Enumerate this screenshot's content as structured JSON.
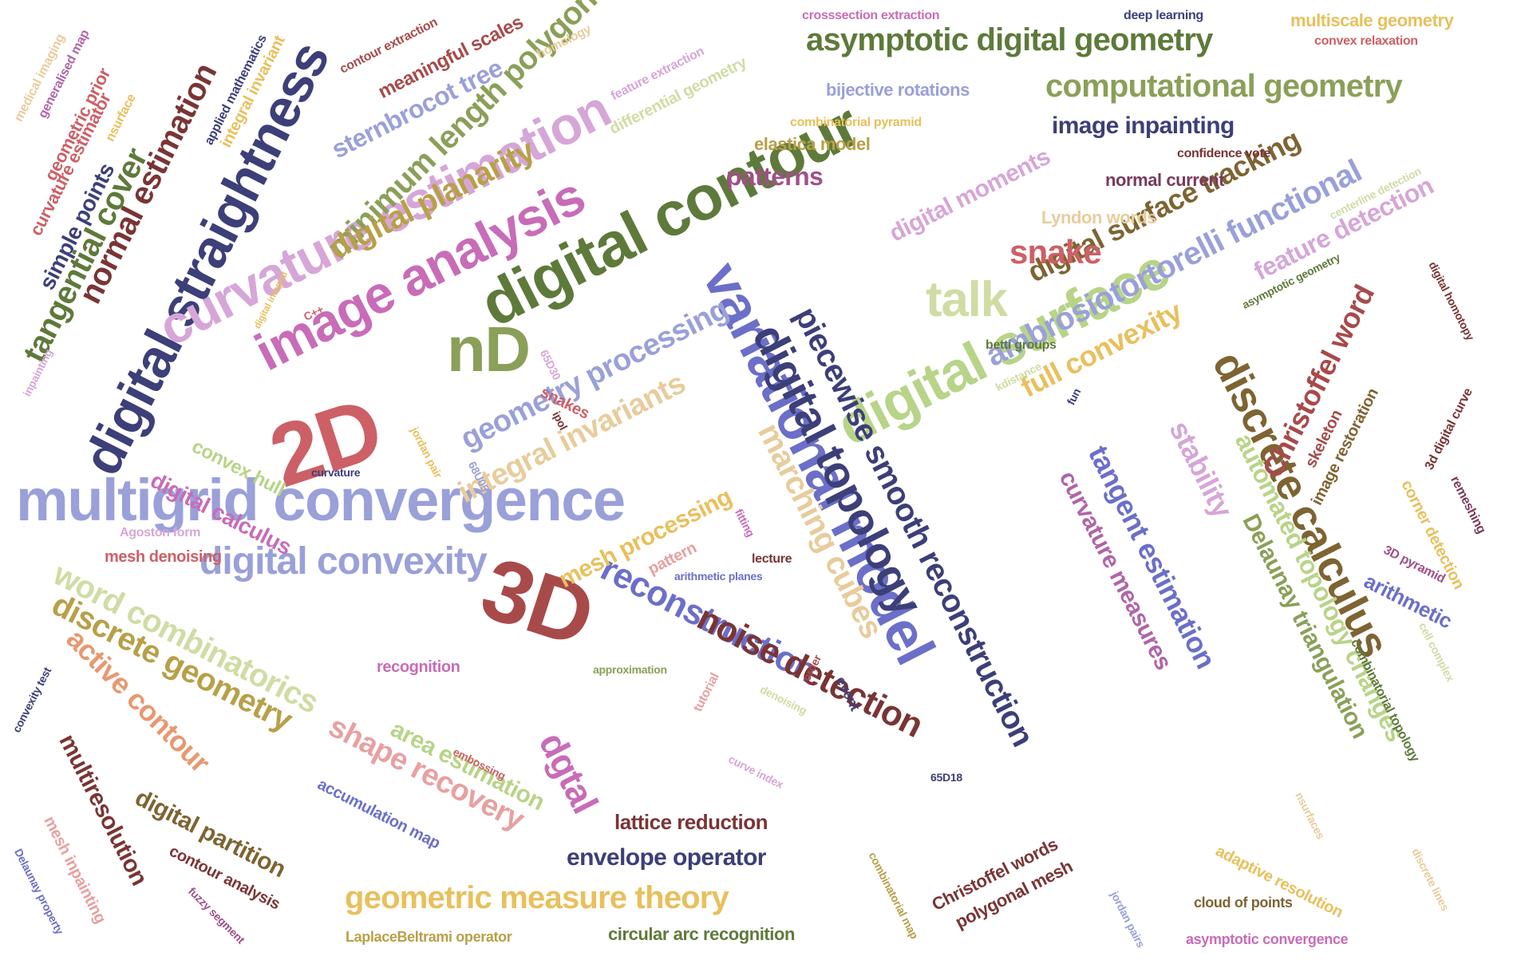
{
  "cloud": {
    "words": [
      {
        "text": "multigrid convergence",
        "color": "#9aa0d8"
      },
      {
        "text": "digital contour",
        "color": "#5e7a3a"
      },
      {
        "text": "variational model",
        "color": "#6b6fc8"
      },
      {
        "text": "digital straightness",
        "color": "#3c3f78"
      },
      {
        "text": "curvature estimation",
        "color": "#d6a6d8"
      },
      {
        "text": "image analysis",
        "color": "#c86cb8"
      },
      {
        "text": "digital surface",
        "color": "#b8d488"
      },
      {
        "text": "2D",
        "color": "#cc6066"
      },
      {
        "text": "3D",
        "color": "#a84a4a"
      },
      {
        "text": "nD",
        "color": "#8aa058"
      },
      {
        "text": "digital topology",
        "color": "#3c3f78"
      },
      {
        "text": "discrete calculus",
        "color": "#7e6432"
      },
      {
        "text": "piecewise smooth reconstruction",
        "color": "#3c3f78"
      },
      {
        "text": "asymptotic digital geometry",
        "color": "#5e7a3a"
      },
      {
        "text": "computational geometry",
        "color": "#8aa058"
      },
      {
        "text": "digital convexity",
        "color": "#9aa0d8"
      },
      {
        "text": "ambrosiotortorelli functional",
        "color": "#9aa0d8"
      },
      {
        "text": "digital surface tracking",
        "color": "#7e6432"
      },
      {
        "text": "talk",
        "color": "#d0dca4"
      },
      {
        "text": "marching cubes",
        "color": "#e8cc9c"
      },
      {
        "text": "tangential cover",
        "color": "#5e7a3a"
      },
      {
        "text": "normal estimation",
        "color": "#7a3434"
      },
      {
        "text": "minimum length polygon",
        "color": "#8aa058"
      },
      {
        "text": "sternbrocot tree",
        "color": "#9aa0d8"
      },
      {
        "text": "digital planarity",
        "color": "#b8a048"
      },
      {
        "text": "integral invariants",
        "color": "#e8cc9c"
      },
      {
        "text": "geometry processing",
        "color": "#9aa0d8"
      },
      {
        "text": "word combinatorics",
        "color": "#d0dca4"
      },
      {
        "text": "discrete geometry",
        "color": "#b8a048"
      },
      {
        "text": "active contour",
        "color": "#e89870"
      },
      {
        "text": "reconstruction",
        "color": "#6b6fc8"
      },
      {
        "text": "noise detection",
        "color": "#7a3434"
      },
      {
        "text": "tangent estimation",
        "color": "#6b6fc8"
      },
      {
        "text": "curvature measures",
        "color": "#b064a8"
      },
      {
        "text": "Christoffel word",
        "color": "#a84a4a"
      },
      {
        "text": "full convexity",
        "color": "#e8c05c"
      },
      {
        "text": "stability",
        "color": "#d6a6d8"
      },
      {
        "text": "automated topology changes",
        "color": "#b8d488"
      },
      {
        "text": "Delaunay triangulation",
        "color": "#8aa058"
      },
      {
        "text": "feature detection",
        "color": "#d6a6d8"
      },
      {
        "text": "image inpainting",
        "color": "#3c3f78"
      },
      {
        "text": "geometric measure theory",
        "color": "#e8c05c"
      },
      {
        "text": "shape recovery",
        "color": "#e8a0a0"
      },
      {
        "text": "digital partition",
        "color": "#7e6432"
      },
      {
        "text": "multiresolution",
        "color": "#7a3434"
      },
      {
        "text": "mesh processing",
        "color": "#e8c05c"
      },
      {
        "text": "dgtal",
        "color": "#c86cb8"
      },
      {
        "text": "area estimation",
        "color": "#b8d488"
      },
      {
        "text": "envelope operator",
        "color": "#3c3f78"
      },
      {
        "text": "lattice reduction",
        "color": "#7a3434"
      },
      {
        "text": "snake",
        "color": "#cc6066"
      },
      {
        "text": "patterns",
        "color": "#a05088"
      },
      {
        "text": "digital moments",
        "color": "#d6a6d8"
      },
      {
        "text": "digital calculus",
        "color": "#c86cb8"
      },
      {
        "text": "convex hull",
        "color": "#b8d488"
      },
      {
        "text": "simple points",
        "color": "#3c3f78"
      },
      {
        "text": "curvature estimator",
        "color": "#cc6066"
      },
      {
        "text": "geometric prior",
        "color": "#cc6066"
      },
      {
        "text": "generalised map",
        "color": "#b064a8"
      },
      {
        "text": "medical imaging",
        "color": "#e8cc9c"
      },
      {
        "text": "nsurface",
        "color": "#e8c05c"
      },
      {
        "text": "applied mathematics",
        "color": "#3c3f78"
      },
      {
        "text": "integral invariant",
        "color": "#e8c05c"
      },
      {
        "text": "contour extraction",
        "color": "#a84a4a"
      },
      {
        "text": "meaningful scales",
        "color": "#a84a4a"
      },
      {
        "text": "homology",
        "color": "#e8cc9c"
      },
      {
        "text": "feature extraction",
        "color": "#d6a6d8"
      },
      {
        "text": "differential geometry",
        "color": "#d0dca4"
      },
      {
        "text": "crosssection extraction",
        "color": "#c86cb8"
      },
      {
        "text": "deep learning",
        "color": "#3c3f78"
      },
      {
        "text": "multiscale geometry",
        "color": "#e8c05c"
      },
      {
        "text": "convex relaxation",
        "color": "#cc6066"
      },
      {
        "text": "bijective rotations",
        "color": "#9aa0d8"
      },
      {
        "text": "combinatorial pyramid",
        "color": "#e8c05c"
      },
      {
        "text": "elastica model",
        "color": "#b8a048"
      },
      {
        "text": "normal current",
        "color": "#7a3a5a"
      },
      {
        "text": "confidence vote",
        "color": "#7a3434"
      },
      {
        "text": "Lyndon words",
        "color": "#e8cc9c"
      },
      {
        "text": "centerline detection",
        "color": "#d0dca4"
      },
      {
        "text": "asymptotic geometry",
        "color": "#5e7a3a"
      },
      {
        "text": "digital homotopy",
        "color": "#7a3434"
      },
      {
        "text": "betti groups",
        "color": "#5e7a3a"
      },
      {
        "text": "kdistance",
        "color": "#d0dca4"
      },
      {
        "text": "fun",
        "color": "#3c3f78"
      },
      {
        "text": "image restoration",
        "color": "#7e6432"
      },
      {
        "text": "skeleton",
        "color": "#a84a4a"
      },
      {
        "text": "3d digital curve",
        "color": "#7a3434"
      },
      {
        "text": "remeshing",
        "color": "#7a3a5a"
      },
      {
        "text": "corner detection",
        "color": "#e8c05c"
      },
      {
        "text": "arithmetic",
        "color": "#6b6fc8"
      },
      {
        "text": "3D pyramid",
        "color": "#a05088"
      },
      {
        "text": "cell complex",
        "color": "#d0dca4"
      },
      {
        "text": "combinatorial topology",
        "color": "#5e7a3a"
      },
      {
        "text": "adaptive resolution",
        "color": "#e8c05c"
      },
      {
        "text": "discrete lines",
        "color": "#e8cc9c"
      },
      {
        "text": "cloud of points",
        "color": "#7e6432"
      },
      {
        "text": "asymptotic convergence",
        "color": "#c86cb8"
      },
      {
        "text": "nsurfaces",
        "color": "#e8cc9c"
      },
      {
        "text": "jordan pairs",
        "color": "#9aa0d8"
      },
      {
        "text": "polygonal mesh",
        "color": "#7a3434"
      },
      {
        "text": "Christoffel words",
        "color": "#7a3434"
      },
      {
        "text": "combinatorial map",
        "color": "#b8a048"
      },
      {
        "text": "65D18",
        "color": "#3c3f78"
      },
      {
        "text": "curve index",
        "color": "#d6a6d8"
      },
      {
        "text": "denoising",
        "color": "#d0dca4"
      },
      {
        "text": "order",
        "color": "#a84a4a"
      },
      {
        "text": "event",
        "color": "#3c3f78"
      },
      {
        "text": "tutorial",
        "color": "#e8a0a0"
      },
      {
        "text": "approximation",
        "color": "#8aa058"
      },
      {
        "text": "recognition",
        "color": "#c86cb8"
      },
      {
        "text": "embossing",
        "color": "#cc6066"
      },
      {
        "text": "accumulation map",
        "color": "#6b6fc8"
      },
      {
        "text": "circular arc recognition",
        "color": "#5e7a3a"
      },
      {
        "text": "LaplaceBeltrami operator",
        "color": "#b8a048"
      },
      {
        "text": "fuzzy segment",
        "color": "#a05088"
      },
      {
        "text": "contour analysis",
        "color": "#7a3434"
      },
      {
        "text": "mesh inpainting",
        "color": "#e8a0a0"
      },
      {
        "text": "Delaunay property",
        "color": "#6b6fc8"
      },
      {
        "text": "convexity test",
        "color": "#3c3f78"
      },
      {
        "text": "mesh denoising",
        "color": "#cc6066"
      },
      {
        "text": "Agoston form",
        "color": "#d6a6d8"
      },
      {
        "text": "curvature",
        "color": "#3c3f78"
      },
      {
        "text": "jordan pair",
        "color": "#e8c05c"
      },
      {
        "text": "68U05",
        "color": "#9aa0d8"
      },
      {
        "text": "pattern",
        "color": "#e8a0a0"
      },
      {
        "text": "lecture",
        "color": "#7a3434"
      },
      {
        "text": "arithmetic planes",
        "color": "#6b6fc8"
      },
      {
        "text": "fitting",
        "color": "#c86cb8"
      },
      {
        "text": "snakes",
        "color": "#cc6066"
      },
      {
        "text": "ipol",
        "color": "#7a3434"
      },
      {
        "text": "65D30",
        "color": "#d6a6d8"
      },
      {
        "text": "C++",
        "color": "#cc6066"
      },
      {
        "text": "inpainting",
        "color": "#d6a6d8"
      },
      {
        "text": "digital integral",
        "color": "#e8c05c"
      }
    ]
  }
}
